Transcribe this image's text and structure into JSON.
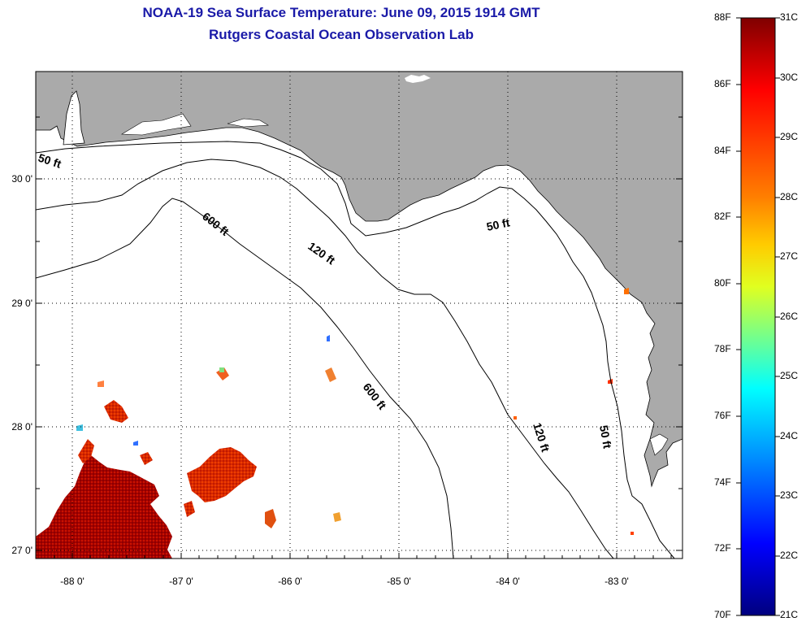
{
  "title_line1": "NOAA-19 Sea Surface Temperature:  June 09, 2015 1914 GMT",
  "title_line2": "Rutgers Coastal Ocean Observation Lab",
  "map": {
    "lon_labels": [
      "-88 0'",
      "-87 0'",
      "-86 0'",
      "-85 0'",
      "-84 0'",
      "-83 0'"
    ],
    "lat_labels": [
      "30 0'",
      "29 0'",
      "28 0'",
      "27 0'"
    ],
    "contour_labels": {
      "fifty_west": "50 ft",
      "six_hundred_north": "600 ft",
      "one_twenty_north": "120 ft",
      "fifty_east": "50 ft",
      "six_hundred_south": "600 ft",
      "one_twenty_south": "120 ft",
      "fifty_south": "50 ft"
    },
    "colors": {
      "land": "#aaaaaa",
      "ocean": "#ffffff",
      "contour": "#000000",
      "grid": "#000000"
    }
  },
  "colorbar": {
    "fahrenheit_labels": [
      "88F",
      "86F",
      "84F",
      "82F",
      "80F",
      "78F",
      "76F",
      "74F",
      "72F",
      "70F"
    ],
    "celsius_labels": [
      "31C",
      "30C",
      "29C",
      "28C",
      "27C",
      "26C",
      "25C",
      "24C",
      "23C",
      "22C",
      "21C"
    ],
    "range_f": [
      70,
      88
    ],
    "range_c": [
      21,
      31
    ],
    "gradient_colors": [
      "#7f0000",
      "#ff0000",
      "#ff7f00",
      "#ffff00",
      "#7fff7f",
      "#00ffff",
      "#007fff",
      "#0000ff",
      "#00007f"
    ]
  }
}
